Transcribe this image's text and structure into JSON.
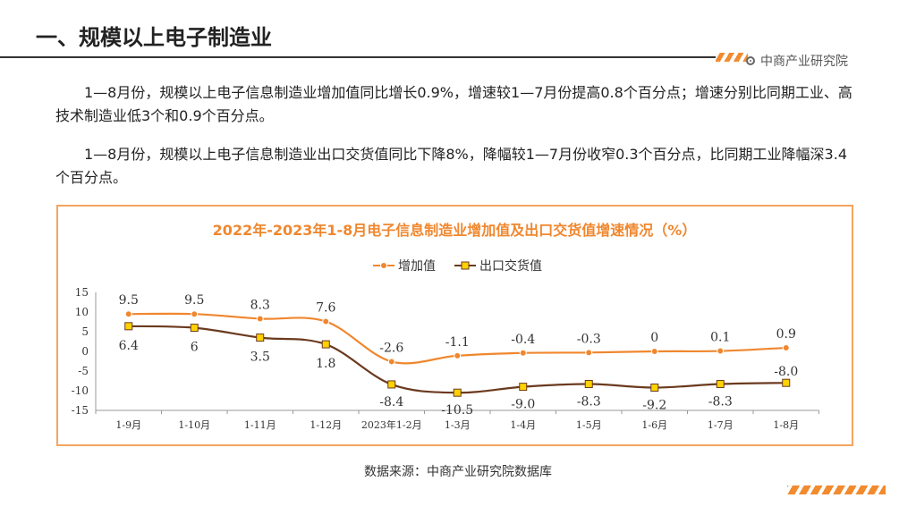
{
  "header": {
    "title": "一、规模以上电子制造业",
    "brand": "中商产业研究院"
  },
  "body": {
    "paragraph1": "1—8月份，规模以上电子信息制造业增加值同比增长0.9%，增速较1—7月份提高0.8个百分点；增速分别比同期工业、高技术制造业低3个和0.9个百分点。",
    "paragraph2": "1—8月份，规模以上电子信息制造业出口交货值同比下降8%，降幅较1—7月份收窄0.3个百分点，比同期工业降幅深3.4个百分点。"
  },
  "footer": {
    "source": "数据来源：中商产业研究院数据库"
  },
  "colors": {
    "accent": "#f28a2e",
    "series1": "#f0872e",
    "series2": "#6b3a1f",
    "marker2": "#ffd200",
    "border": "#f4a460"
  },
  "chart_data": {
    "type": "line",
    "title": "2022年-2023年1-8月电子信息制造业增加值及出口交货值增速情况（%）",
    "categories": [
      "1-9月",
      "1-10月",
      "1-11月",
      "1-12月",
      "2023年1-2月",
      "1-3月",
      "1-4月",
      "1-5月",
      "1-6月",
      "1-7月",
      "1-8月"
    ],
    "series": [
      {
        "name": "增加值",
        "values": [
          9.5,
          9.5,
          8.3,
          7.6,
          -2.6,
          -1.1,
          -0.4,
          -0.3,
          0,
          0.1,
          0.9
        ]
      },
      {
        "name": "出口交货值",
        "values": [
          6.4,
          6,
          3.5,
          1.8,
          -8.4,
          -10.5,
          -9.0,
          -8.3,
          -9.2,
          -8.3,
          -8.0
        ]
      }
    ],
    "value_labels": [
      [
        "9.5",
        "9.5",
        "8.3",
        "7.6",
        "-2.6",
        "-1.1",
        "-0.4",
        "-0.3",
        "0",
        "0.1",
        "0.9"
      ],
      [
        "6.4",
        "6",
        "3.5",
        "1.8",
        "-8.4",
        "-10.5",
        "-9.0",
        "-8.3",
        "-9.2",
        "-8.3",
        "-8.0"
      ]
    ],
    "yticks": [
      "15",
      "10",
      "5",
      "0",
      "-5",
      "-10",
      "-15"
    ],
    "ylim": [
      -15,
      15
    ],
    "legend_position": "top",
    "grid": false
  }
}
